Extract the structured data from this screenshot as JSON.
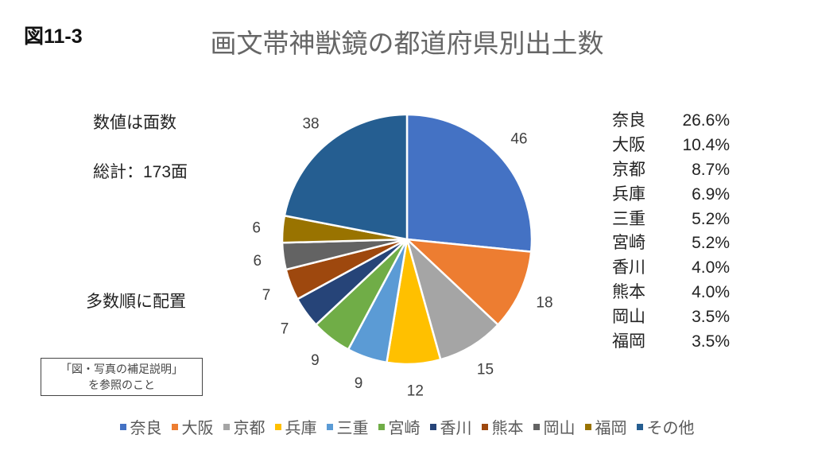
{
  "figure_label": "図11-3",
  "notes": {
    "unit": "数値は面数",
    "total": "総計：173面",
    "order": "多数順に配置"
  },
  "reference_box": {
    "line1": "「図・写真の補足説明」",
    "line2": "を参照のこと"
  },
  "percent_list": [
    {
      "name": "奈良",
      "pct": "26.6%"
    },
    {
      "name": "大阪",
      "pct": "10.4%"
    },
    {
      "name": "京都",
      "pct": "8.7%"
    },
    {
      "name": "兵庫",
      "pct": "6.9%"
    },
    {
      "name": "三重",
      "pct": "5.2%"
    },
    {
      "name": "宮崎",
      "pct": "5.2%"
    },
    {
      "name": "香川",
      "pct": "4.0%"
    },
    {
      "name": "熊本",
      "pct": "4.0%"
    },
    {
      "name": "岡山",
      "pct": "3.5%"
    },
    {
      "name": "福岡",
      "pct": "3.5%"
    }
  ],
  "chart_data": {
    "type": "pie",
    "title": "画文帯神獣鏡の都道府県別出土数",
    "categories": [
      "奈良",
      "大阪",
      "京都",
      "兵庫",
      "三重",
      "宮崎",
      "香川",
      "熊本",
      "岡山",
      "福岡",
      "その他"
    ],
    "values": [
      46,
      18,
      15,
      12,
      9,
      9,
      7,
      7,
      6,
      6,
      38
    ],
    "colors": [
      "#4472C4",
      "#ED7D31",
      "#A5A5A5",
      "#FFC000",
      "#5B9BD5",
      "#70AD47",
      "#264478",
      "#9E480E",
      "#636363",
      "#997300",
      "#255E91"
    ],
    "legend_position": "bottom",
    "start": "top",
    "direction": "clockwise"
  }
}
